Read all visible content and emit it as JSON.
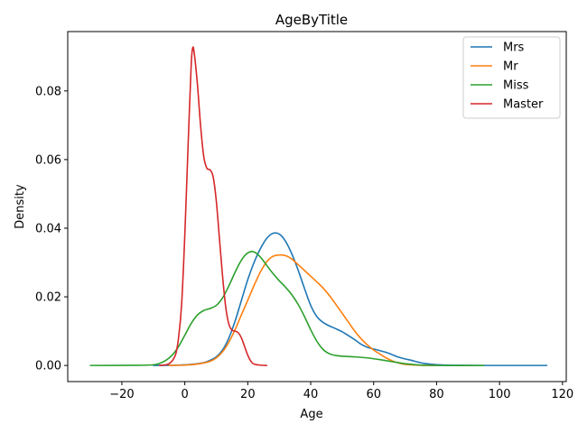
{
  "chart_data": {
    "type": "line",
    "title": "AgeByTitle",
    "xlabel": "Age",
    "ylabel": "Density",
    "xlim": [
      -37.2,
      121.2
    ],
    "ylim": [
      -0.0047,
      0.0973
    ],
    "xticks": [
      -20,
      0,
      20,
      40,
      60,
      80,
      100,
      120
    ],
    "xtick_labels": [
      "−20",
      "0",
      "20",
      "40",
      "60",
      "80",
      "100",
      "120"
    ],
    "yticks": [
      0.0,
      0.02,
      0.04,
      0.06,
      0.08
    ],
    "ytick_labels": [
      "0.00",
      "0.02",
      "0.04",
      "0.06",
      "0.08"
    ],
    "grid": false,
    "legend_position": "top-right",
    "series": [
      {
        "name": "Mrs",
        "color": "#1f77b4",
        "points": [
          [
            -10,
            0
          ],
          [
            -2,
            0.0001
          ],
          [
            2,
            0.0003
          ],
          [
            6,
            0.0008
          ],
          [
            8,
            0.0015
          ],
          [
            10,
            0.0025
          ],
          [
            12,
            0.0045
          ],
          [
            14,
            0.008
          ],
          [
            16,
            0.013
          ],
          [
            18,
            0.019
          ],
          [
            20,
            0.025
          ],
          [
            22,
            0.03
          ],
          [
            24,
            0.034
          ],
          [
            26,
            0.037
          ],
          [
            28,
            0.0385
          ],
          [
            30,
            0.0383
          ],
          [
            32,
            0.0362
          ],
          [
            34,
            0.0325
          ],
          [
            36,
            0.0278
          ],
          [
            38,
            0.0225
          ],
          [
            40,
            0.0175
          ],
          [
            42,
            0.0142
          ],
          [
            44,
            0.0125
          ],
          [
            46,
            0.0115
          ],
          [
            48,
            0.0107
          ],
          [
            50,
            0.0098
          ],
          [
            52,
            0.0087
          ],
          [
            54,
            0.0075
          ],
          [
            56,
            0.0062
          ],
          [
            58,
            0.0053
          ],
          [
            60,
            0.0048
          ],
          [
            62,
            0.0043
          ],
          [
            64,
            0.0038
          ],
          [
            66,
            0.0031
          ],
          [
            68,
            0.0024
          ],
          [
            70,
            0.0019
          ],
          [
            72,
            0.0015
          ],
          [
            74,
            0.001
          ],
          [
            76,
            0.0006
          ],
          [
            80,
            0.0002
          ],
          [
            85,
            5e-05
          ],
          [
            95,
            0
          ],
          [
            115,
            0
          ]
        ]
      },
      {
        "name": "Mr",
        "color": "#ff7f0e",
        "points": [
          [
            -5,
            0
          ],
          [
            0,
            0.0001
          ],
          [
            4,
            0.0004
          ],
          [
            8,
            0.0012
          ],
          [
            10,
            0.0022
          ],
          [
            12,
            0.004
          ],
          [
            14,
            0.0068
          ],
          [
            16,
            0.0105
          ],
          [
            18,
            0.0148
          ],
          [
            20,
            0.019
          ],
          [
            22,
            0.0233
          ],
          [
            24,
            0.0272
          ],
          [
            26,
            0.0302
          ],
          [
            28,
            0.0318
          ],
          [
            30,
            0.0322
          ],
          [
            32,
            0.032
          ],
          [
            34,
            0.031
          ],
          [
            36,
            0.0294
          ],
          [
            38,
            0.0277
          ],
          [
            40,
            0.026
          ],
          [
            42,
            0.0243
          ],
          [
            44,
            0.0225
          ],
          [
            46,
            0.0203
          ],
          [
            48,
            0.0178
          ],
          [
            50,
            0.0152
          ],
          [
            52,
            0.0126
          ],
          [
            54,
            0.01
          ],
          [
            56,
            0.0078
          ],
          [
            58,
            0.006
          ],
          [
            60,
            0.0045
          ],
          [
            62,
            0.0033
          ],
          [
            64,
            0.0022
          ],
          [
            66,
            0.0013
          ],
          [
            68,
            0.0007
          ],
          [
            70,
            0.0003
          ],
          [
            75,
            5e-05
          ],
          [
            80,
            0
          ]
        ]
      },
      {
        "name": "Miss",
        "color": "#2ca02c",
        "points": [
          [
            -30,
            0
          ],
          [
            -15,
            5e-05
          ],
          [
            -10,
            0.0002
          ],
          [
            -8,
            0.0006
          ],
          [
            -6,
            0.0015
          ],
          [
            -4,
            0.003
          ],
          [
            -2,
            0.0055
          ],
          [
            0,
            0.0088
          ],
          [
            2,
            0.0122
          ],
          [
            4,
            0.0147
          ],
          [
            6,
            0.016
          ],
          [
            8,
            0.0166
          ],
          [
            10,
            0.0175
          ],
          [
            12,
            0.0197
          ],
          [
            14,
            0.0232
          ],
          [
            16,
            0.0272
          ],
          [
            18,
            0.0307
          ],
          [
            20,
            0.0328
          ],
          [
            22,
            0.0331
          ],
          [
            24,
            0.0316
          ],
          [
            26,
            0.0292
          ],
          [
            28,
            0.0268
          ],
          [
            30,
            0.0247
          ],
          [
            32,
            0.0228
          ],
          [
            34,
            0.0206
          ],
          [
            36,
            0.0178
          ],
          [
            38,
            0.0143
          ],
          [
            40,
            0.0104
          ],
          [
            42,
            0.007
          ],
          [
            44,
            0.0046
          ],
          [
            46,
            0.0034
          ],
          [
            48,
            0.0029
          ],
          [
            50,
            0.0027
          ],
          [
            54,
            0.0025
          ],
          [
            58,
            0.0022
          ],
          [
            62,
            0.0017
          ],
          [
            66,
            0.0011
          ],
          [
            70,
            0.0005
          ],
          [
            75,
            0.0001
          ],
          [
            80,
            0
          ],
          [
            95,
            0
          ]
        ]
      },
      {
        "name": "Master",
        "color": "#d62728",
        "points": [
          [
            -8,
            0
          ],
          [
            -5,
            0.0005
          ],
          [
            -3,
            0.003
          ],
          [
            -2,
            0.008
          ],
          [
            -1,
            0.018
          ],
          [
            0,
            0.038
          ],
          [
            1,
            0.063
          ],
          [
            2,
            0.087
          ],
          [
            2.5,
            0.0925
          ],
          [
            3,
            0.091
          ],
          [
            4,
            0.082
          ],
          [
            5,
            0.07
          ],
          [
            6,
            0.061
          ],
          [
            7,
            0.0575
          ],
          [
            8,
            0.057
          ],
          [
            9,
            0.055
          ],
          [
            10,
            0.048
          ],
          [
            11,
            0.037
          ],
          [
            12,
            0.026
          ],
          [
            13,
            0.017
          ],
          [
            14,
            0.012
          ],
          [
            15,
            0.0103
          ],
          [
            16,
            0.01
          ],
          [
            17,
            0.0095
          ],
          [
            18,
            0.008
          ],
          [
            19,
            0.0055
          ],
          [
            20,
            0.003
          ],
          [
            21,
            0.0012
          ],
          [
            22,
            0.0004
          ],
          [
            24,
            0.0001
          ],
          [
            26,
            0
          ]
        ]
      }
    ]
  }
}
